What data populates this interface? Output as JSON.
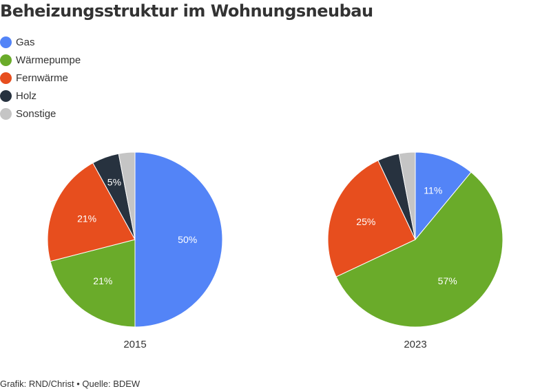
{
  "title": "Beheizungsstruktur im Wohnungsneubau",
  "legend": [
    {
      "label": "Gas",
      "color": "#5384f7"
    },
    {
      "label": "Wärmepumpe",
      "color": "#6aab2a"
    },
    {
      "label": "Fernwärme",
      "color": "#e74e1e"
    },
    {
      "label": "Holz",
      "color": "#27323f"
    },
    {
      "label": "Sonstige",
      "color": "#c5c5c5"
    }
  ],
  "chart_data": {
    "type": "pie",
    "categories": [
      "Gas",
      "Wärmepumpe",
      "Fernwärme",
      "Holz",
      "Sonstige"
    ],
    "colors": [
      "#5384f7",
      "#6aab2a",
      "#e74e1e",
      "#27323f",
      "#c5c5c5"
    ],
    "pies": [
      {
        "label": "2015",
        "values": [
          50,
          21,
          21,
          5,
          3
        ],
        "value_labels": [
          "50%",
          "21%",
          "21%",
          "5%",
          ""
        ]
      },
      {
        "label": "2023",
        "values": [
          11,
          57,
          25,
          4,
          3
        ],
        "value_labels": [
          "11%",
          "57%",
          "25%",
          "",
          ""
        ]
      }
    ]
  },
  "footer": "Grafik: RND/Christ • Quelle: BDEW"
}
